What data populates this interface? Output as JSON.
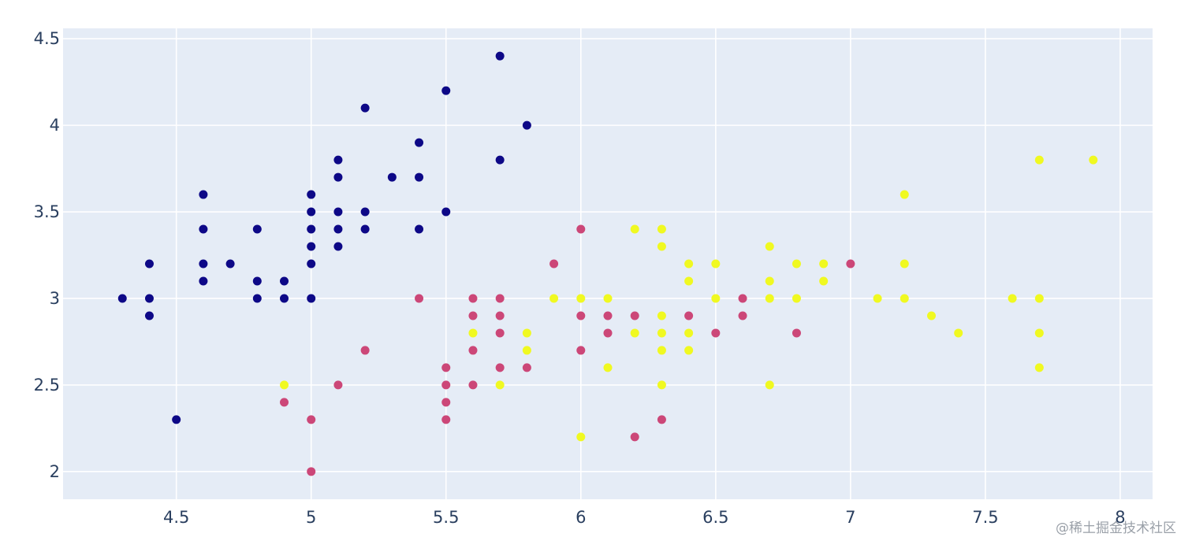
{
  "chart_data": {
    "type": "scatter",
    "title": "",
    "xlabel": "",
    "ylabel": "",
    "xlim": [
      4.08,
      8.12
    ],
    "ylim": [
      1.84,
      4.56
    ],
    "xticks": [
      4.5,
      5,
      5.5,
      6,
      6.5,
      7,
      7.5,
      8
    ],
    "xtick_labels": [
      "4.5",
      "5",
      "5.5",
      "6",
      "6.5",
      "7",
      "7.5",
      "8"
    ],
    "yticks": [
      2,
      2.5,
      3,
      3.5,
      4,
      4.5
    ],
    "ytick_labels": [
      "2",
      "2.5",
      "3",
      "3.5",
      "4",
      "4.5"
    ],
    "grid": true,
    "legend": "none",
    "plot_background": "#e5ecf6",
    "grid_color": "#ffffff",
    "series": [
      {
        "color": "#0d0887",
        "points": [
          [
            4.3,
            3.0
          ],
          [
            4.4,
            3.2
          ],
          [
            4.4,
            3.0
          ],
          [
            4.4,
            2.9
          ],
          [
            4.5,
            2.3
          ],
          [
            4.6,
            3.6
          ],
          [
            4.6,
            3.4
          ],
          [
            4.6,
            3.2
          ],
          [
            4.6,
            3.1
          ],
          [
            4.7,
            3.2
          ],
          [
            4.8,
            3.4
          ],
          [
            4.8,
            3.1
          ],
          [
            4.8,
            3.0
          ],
          [
            4.9,
            3.1
          ],
          [
            4.9,
            3.0
          ],
          [
            5.0,
            3.6
          ],
          [
            5.0,
            3.5
          ],
          [
            5.0,
            3.4
          ],
          [
            5.0,
            3.3
          ],
          [
            5.0,
            3.2
          ],
          [
            5.0,
            3.0
          ],
          [
            5.1,
            3.8
          ],
          [
            5.1,
            3.7
          ],
          [
            5.1,
            3.5
          ],
          [
            5.1,
            3.4
          ],
          [
            5.1,
            3.3
          ],
          [
            5.2,
            4.1
          ],
          [
            5.2,
            3.5
          ],
          [
            5.2,
            3.4
          ],
          [
            5.3,
            3.7
          ],
          [
            5.4,
            3.9
          ],
          [
            5.4,
            3.7
          ],
          [
            5.4,
            3.4
          ],
          [
            5.5,
            4.2
          ],
          [
            5.5,
            3.5
          ],
          [
            5.7,
            4.4
          ],
          [
            5.7,
            3.8
          ],
          [
            5.8,
            4.0
          ]
        ]
      },
      {
        "color": "#cc4778",
        "points": [
          [
            4.9,
            2.4
          ],
          [
            5.0,
            2.3
          ],
          [
            5.0,
            2.0
          ],
          [
            5.1,
            2.5
          ],
          [
            5.2,
            2.7
          ],
          [
            5.4,
            3.0
          ],
          [
            5.5,
            2.6
          ],
          [
            5.5,
            2.5
          ],
          [
            5.5,
            2.4
          ],
          [
            5.5,
            2.3
          ],
          [
            5.6,
            3.0
          ],
          [
            5.6,
            2.9
          ],
          [
            5.6,
            2.7
          ],
          [
            5.6,
            2.5
          ],
          [
            5.7,
            3.0
          ],
          [
            5.7,
            2.9
          ],
          [
            5.7,
            2.8
          ],
          [
            5.7,
            2.6
          ],
          [
            5.8,
            2.6
          ],
          [
            5.9,
            3.2
          ],
          [
            6.0,
            3.4
          ],
          [
            6.0,
            2.9
          ],
          [
            6.0,
            2.7
          ],
          [
            6.1,
            2.9
          ],
          [
            6.1,
            2.8
          ],
          [
            6.2,
            2.9
          ],
          [
            6.2,
            2.2
          ],
          [
            6.3,
            2.3
          ],
          [
            6.4,
            2.9
          ],
          [
            6.5,
            2.8
          ],
          [
            6.6,
            3.0
          ],
          [
            6.6,
            2.9
          ],
          [
            6.8,
            2.8
          ],
          [
            7.0,
            3.2
          ]
        ]
      },
      {
        "color": "#f0f921",
        "points": [
          [
            4.9,
            2.5
          ],
          [
            5.6,
            2.8
          ],
          [
            5.7,
            2.5
          ],
          [
            5.8,
            2.8
          ],
          [
            5.8,
            2.7
          ],
          [
            5.9,
            3.0
          ],
          [
            6.0,
            3.0
          ],
          [
            6.0,
            2.2
          ],
          [
            6.1,
            3.0
          ],
          [
            6.1,
            2.6
          ],
          [
            6.2,
            3.4
          ],
          [
            6.2,
            2.8
          ],
          [
            6.3,
            3.4
          ],
          [
            6.3,
            3.3
          ],
          [
            6.3,
            2.9
          ],
          [
            6.3,
            2.8
          ],
          [
            6.3,
            2.7
          ],
          [
            6.3,
            2.5
          ],
          [
            6.4,
            3.2
          ],
          [
            6.4,
            3.1
          ],
          [
            6.4,
            2.8
          ],
          [
            6.4,
            2.7
          ],
          [
            6.5,
            3.2
          ],
          [
            6.5,
            3.0
          ],
          [
            6.7,
            3.3
          ],
          [
            6.7,
            3.1
          ],
          [
            6.7,
            3.0
          ],
          [
            6.7,
            2.5
          ],
          [
            6.8,
            3.2
          ],
          [
            6.8,
            3.0
          ],
          [
            6.9,
            3.2
          ],
          [
            6.9,
            3.1
          ],
          [
            7.1,
            3.0
          ],
          [
            7.2,
            3.6
          ],
          [
            7.2,
            3.2
          ],
          [
            7.2,
            3.0
          ],
          [
            7.3,
            2.9
          ],
          [
            7.4,
            2.8
          ],
          [
            7.6,
            3.0
          ],
          [
            7.7,
            3.8
          ],
          [
            7.7,
            3.0
          ],
          [
            7.7,
            2.8
          ],
          [
            7.7,
            2.6
          ],
          [
            7.9,
            3.8
          ]
        ]
      }
    ]
  },
  "watermark": "@稀土掘金技术社区"
}
